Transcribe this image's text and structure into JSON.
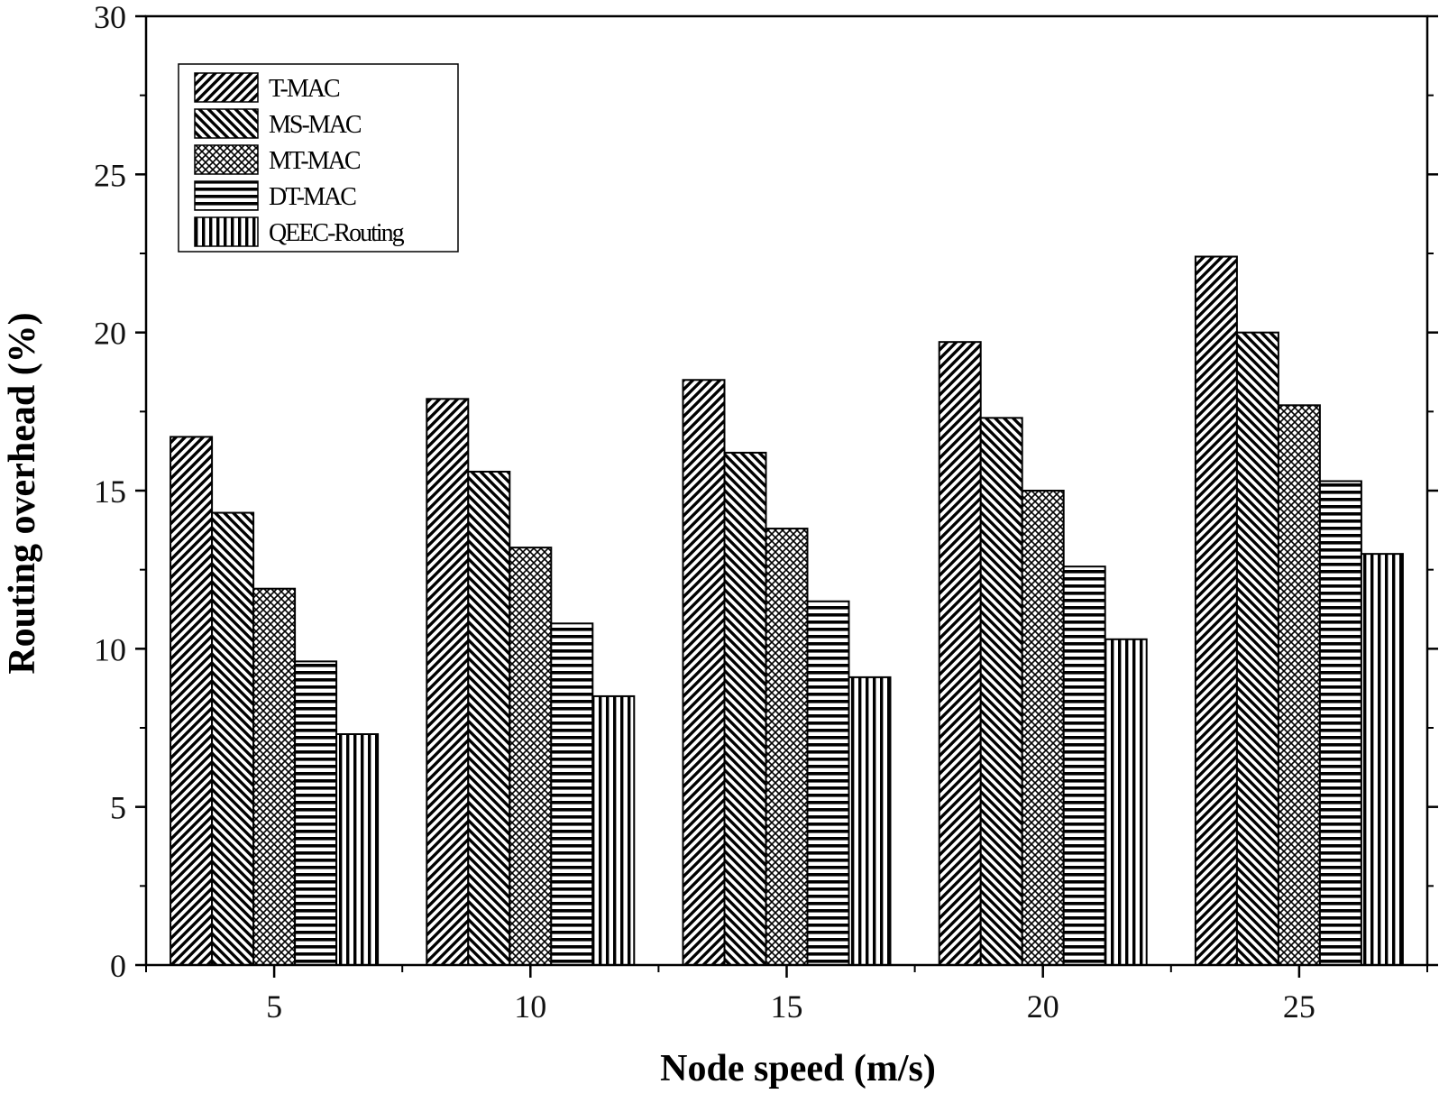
{
  "chart_data": {
    "type": "bar",
    "title": "",
    "xlabel": "Node speed (m/s)",
    "ylabel": "Routing overhead (%)",
    "categories": [
      "5",
      "10",
      "15",
      "20",
      "25"
    ],
    "ylim": [
      0,
      30
    ],
    "yticks": [
      "0",
      "5",
      "10",
      "15",
      "20",
      "25",
      "30"
    ],
    "grid": false,
    "legend_position": "top-left",
    "series": [
      {
        "name": "T-MAC",
        "pattern": "diagonal-forward",
        "values": [
          16.7,
          17.9,
          18.5,
          19.7,
          22.4
        ]
      },
      {
        "name": "MS-MAC",
        "pattern": "diagonal-back",
        "values": [
          14.3,
          15.6,
          16.2,
          17.3,
          20.0
        ]
      },
      {
        "name": "MT-MAC",
        "pattern": "crosshatch",
        "values": [
          11.9,
          13.2,
          13.8,
          15.0,
          17.7
        ]
      },
      {
        "name": "DT-MAC",
        "pattern": "horizontal",
        "values": [
          9.6,
          10.8,
          11.5,
          12.6,
          15.3
        ]
      },
      {
        "name": "QEEC-Routing",
        "pattern": "vertical",
        "values": [
          7.3,
          8.5,
          9.1,
          10.3,
          13.0
        ]
      }
    ],
    "colors": {
      "stroke": "#000000",
      "fill": "#ffffff",
      "hatch": "#000000"
    }
  }
}
